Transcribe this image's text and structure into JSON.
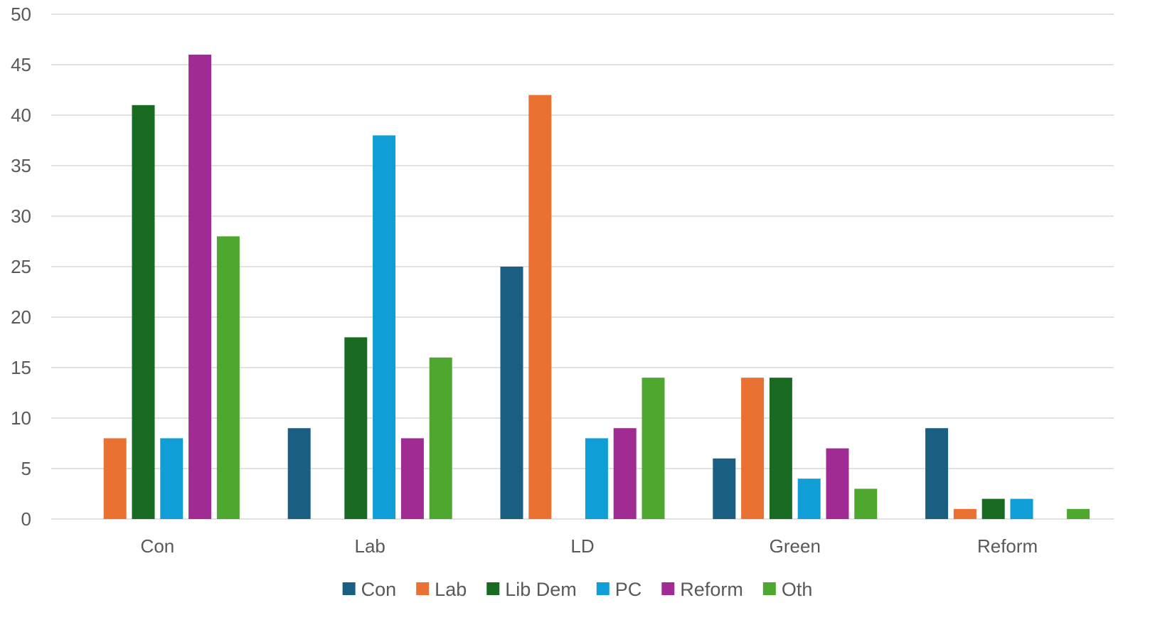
{
  "chart_data": {
    "type": "bar",
    "title": "",
    "xlabel": "",
    "ylabel": "",
    "categories": [
      "Con",
      "Lab",
      "LD",
      "Green",
      "Reform"
    ],
    "series": [
      {
        "name": "Con",
        "color": "#1a5f82",
        "values": [
          0,
          9,
          25,
          6,
          9
        ]
      },
      {
        "name": "Lab",
        "color": "#e97132",
        "values": [
          8,
          0,
          42,
          14,
          1
        ]
      },
      {
        "name": "Lib Dem",
        "color": "#196b24",
        "values": [
          41,
          18,
          0,
          14,
          2
        ]
      },
      {
        "name": "PC",
        "color": "#0f9ed5",
        "values": [
          8,
          38,
          8,
          4,
          2
        ]
      },
      {
        "name": "Reform",
        "color": "#a02b93",
        "values": [
          46,
          8,
          9,
          7,
          0
        ]
      },
      {
        "name": "Oth",
        "color": "#4ea72e",
        "values": [
          28,
          16,
          14,
          3,
          1
        ]
      }
    ],
    "ylim": [
      0,
      50
    ],
    "yticks": [
      0,
      5,
      10,
      15,
      20,
      25,
      30,
      35,
      40,
      45,
      50
    ],
    "grid": true,
    "gridline_color": "#d9d9d9",
    "legend_position": "bottom"
  }
}
